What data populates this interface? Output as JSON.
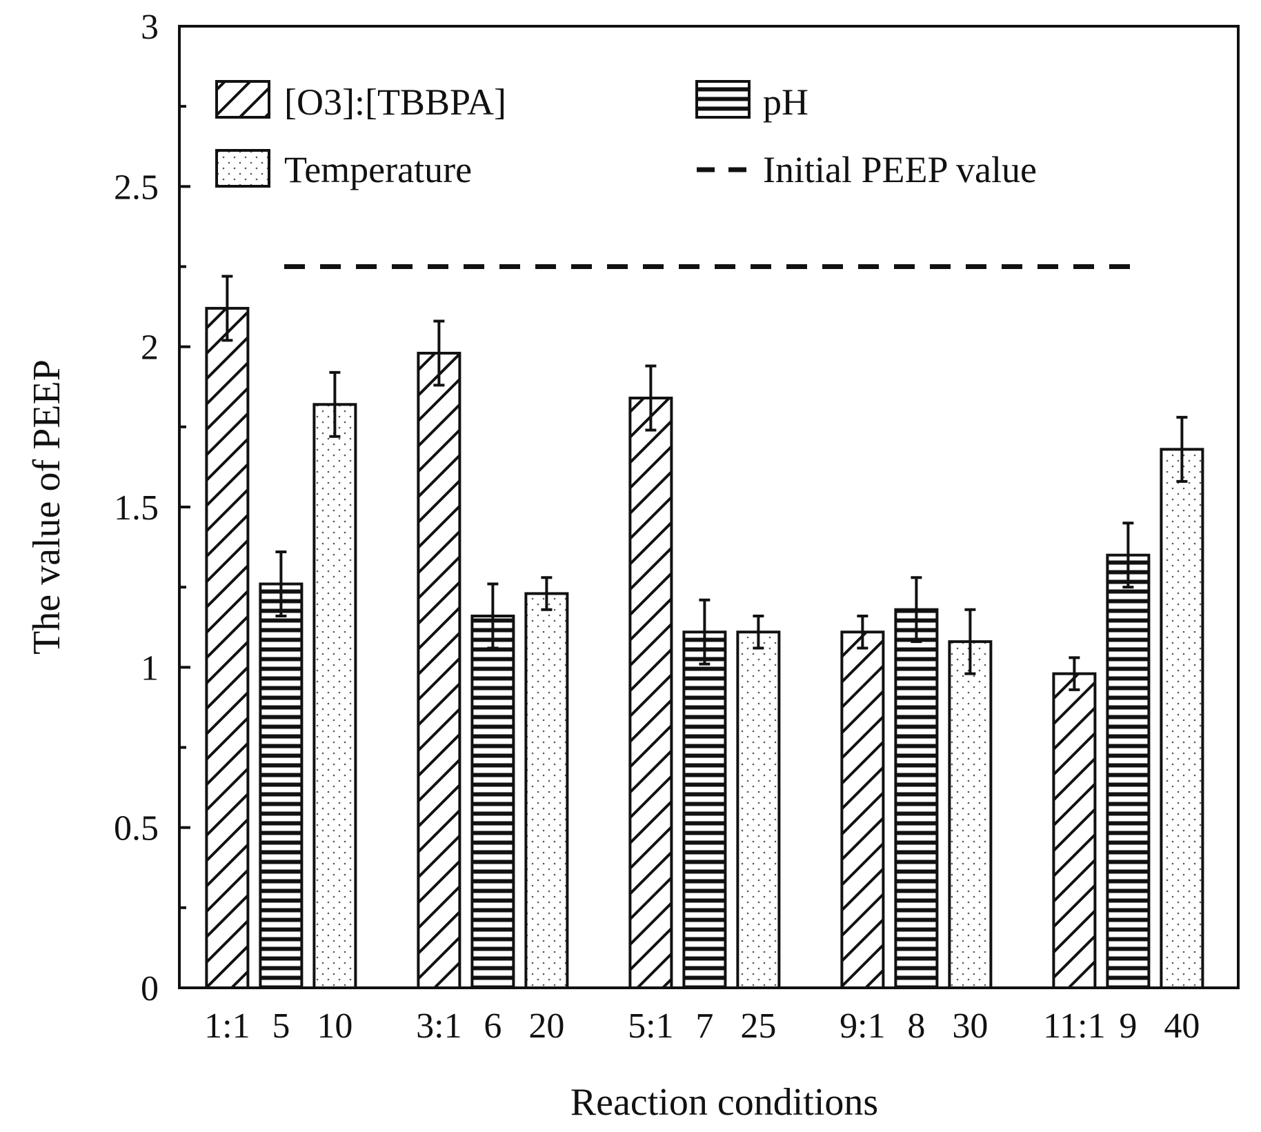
{
  "chart_data": {
    "type": "bar",
    "title": "",
    "xlabel": "Reaction conditions",
    "ylabel": "The value of PEEP",
    "ylim": [
      0,
      3
    ],
    "yticks": [
      0,
      0.5,
      1,
      1.5,
      2,
      2.5,
      3
    ],
    "ytick_labels": [
      "0",
      "0.5",
      "1",
      "1.5",
      "2",
      "2.5",
      "3"
    ],
    "group_labels": [
      [
        "1:1",
        "5",
        "10"
      ],
      [
        "3:1",
        "6",
        "20"
      ],
      [
        "5:1",
        "7",
        "25"
      ],
      [
        "9:1",
        "8",
        "30"
      ],
      [
        "11:1",
        "9",
        "40"
      ]
    ],
    "series": [
      {
        "name": "[O3]:[TBBPA]",
        "pattern": "hatch",
        "values": [
          2.12,
          1.98,
          1.84,
          1.11,
          0.98
        ],
        "errors": [
          0.1,
          0.1,
          0.1,
          0.05,
          0.05
        ]
      },
      {
        "name": "pH",
        "pattern": "horizontal",
        "values": [
          1.26,
          1.16,
          1.11,
          1.18,
          1.35
        ],
        "errors": [
          0.1,
          0.1,
          0.1,
          0.1,
          0.1
        ]
      },
      {
        "name": "Temperature",
        "pattern": "dots",
        "values": [
          1.82,
          1.23,
          1.11,
          1.08,
          1.68
        ],
        "errors": [
          0.1,
          0.05,
          0.05,
          0.1,
          0.1
        ]
      }
    ],
    "reference_line": {
      "name": "Initial PEEP value",
      "value": 2.25
    },
    "legend": [
      "[O3]:[TBBPA]",
      "pH",
      "Temperature",
      "Initial PEEP value"
    ],
    "legend_position": "top",
    "grid": false
  }
}
